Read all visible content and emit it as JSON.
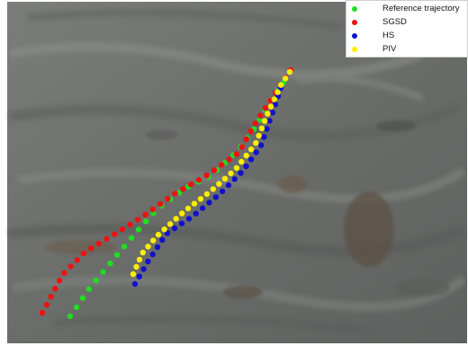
{
  "legend": {
    "items": [
      {
        "label": "Reference trajectory",
        "color": "#22dd22"
      },
      {
        "label": "SGSD",
        "color": "#ee1111"
      },
      {
        "label": "HS",
        "color": "#1111cc"
      },
      {
        "label": "PIV",
        "color": "#ffee00"
      }
    ]
  },
  "colors": {
    "water": "#6c6f6c",
    "water_dark": "#4d504e",
    "water_light": "#8c8f8c",
    "debris": "#5a4a3a"
  }
}
